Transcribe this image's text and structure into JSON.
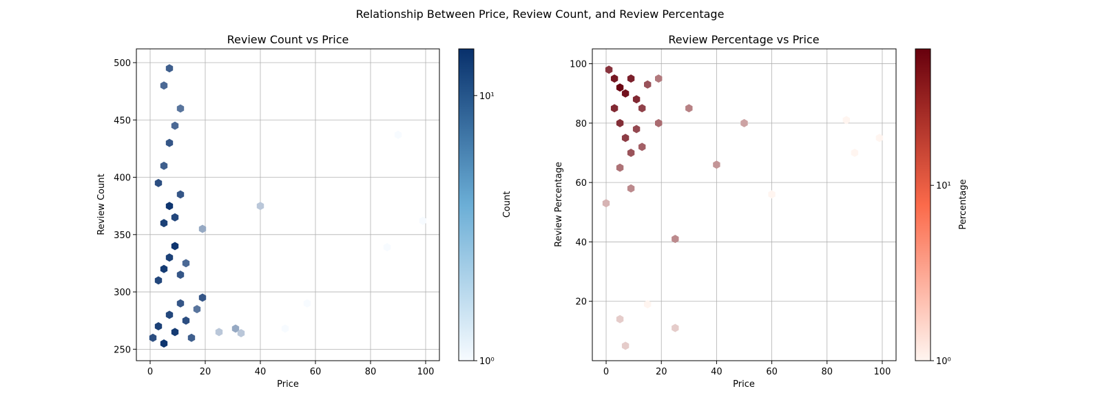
{
  "figure_title": "Relationship Between Price, Review Count, and Review Percentage",
  "chart_data": [
    {
      "type": "heatmap",
      "subtype": "hexbin",
      "title": "Review Count vs Price",
      "xlabel": "Price",
      "ylabel": "Review Count",
      "xlim": [
        -5,
        105
      ],
      "ylim": [
        240,
        512
      ],
      "xticks": [
        0,
        20,
        40,
        60,
        80,
        100
      ],
      "yticks": [
        250,
        300,
        350,
        400,
        450,
        500
      ],
      "grid": true,
      "colormap": "Blues",
      "color_low": "#f7fbff",
      "color_high": "#08306b",
      "colorbar": {
        "label": "Count",
        "scale": "log",
        "range": [
          1,
          15
        ],
        "ticks": [
          1,
          10
        ],
        "tick_labels": [
          "10⁰",
          "10¹"
        ]
      },
      "bins": [
        {
          "x": 1,
          "y": 260,
          "count": 10
        },
        {
          "x": 3,
          "y": 270,
          "count": 12
        },
        {
          "x": 5,
          "y": 255,
          "count": 14
        },
        {
          "x": 7,
          "y": 280,
          "count": 11
        },
        {
          "x": 9,
          "y": 265,
          "count": 13
        },
        {
          "x": 11,
          "y": 290,
          "count": 9
        },
        {
          "x": 13,
          "y": 275,
          "count": 10
        },
        {
          "x": 15,
          "y": 260,
          "count": 8
        },
        {
          "x": 17,
          "y": 285,
          "count": 6
        },
        {
          "x": 3,
          "y": 310,
          "count": 11
        },
        {
          "x": 5,
          "y": 320,
          "count": 13
        },
        {
          "x": 7,
          "y": 330,
          "count": 12
        },
        {
          "x": 9,
          "y": 340,
          "count": 14
        },
        {
          "x": 11,
          "y": 315,
          "count": 9
        },
        {
          "x": 13,
          "y": 325,
          "count": 7
        },
        {
          "x": 5,
          "y": 360,
          "count": 12
        },
        {
          "x": 7,
          "y": 375,
          "count": 14
        },
        {
          "x": 9,
          "y": 365,
          "count": 11
        },
        {
          "x": 11,
          "y": 385,
          "count": 9
        },
        {
          "x": 3,
          "y": 395,
          "count": 10
        },
        {
          "x": 5,
          "y": 410,
          "count": 8
        },
        {
          "x": 7,
          "y": 430,
          "count": 9
        },
        {
          "x": 9,
          "y": 445,
          "count": 7
        },
        {
          "x": 11,
          "y": 460,
          "count": 6
        },
        {
          "x": 5,
          "y": 480,
          "count": 7
        },
        {
          "x": 7,
          "y": 495,
          "count": 8
        },
        {
          "x": 19,
          "y": 295,
          "count": 9
        },
        {
          "x": 19,
          "y": 355,
          "count": 3
        },
        {
          "x": 25,
          "y": 265,
          "count": 2
        },
        {
          "x": 31,
          "y": 268,
          "count": 3
        },
        {
          "x": 33,
          "y": 264,
          "count": 2
        },
        {
          "x": 40,
          "y": 375,
          "count": 2
        },
        {
          "x": 49,
          "y": 268,
          "count": 1
        },
        {
          "x": 57,
          "y": 290,
          "count": 1
        },
        {
          "x": 86,
          "y": 339,
          "count": 1
        },
        {
          "x": 90,
          "y": 437,
          "count": 1
        },
        {
          "x": 99,
          "y": 362,
          "count": 1
        }
      ]
    },
    {
      "type": "heatmap",
      "subtype": "hexbin",
      "title": "Review Percentage vs Price",
      "xlabel": "Price",
      "ylabel": "Review Percentage",
      "xlim": [
        -5,
        105
      ],
      "ylim": [
        0,
        105
      ],
      "xticks": [
        0,
        20,
        40,
        60,
        80,
        100
      ],
      "yticks": [
        20,
        40,
        60,
        80,
        100
      ],
      "grid": true,
      "colormap": "Reds",
      "color_low": "#fff5f0",
      "color_high": "#67000d",
      "colorbar": {
        "label": "Percentage",
        "scale": "log",
        "range": [
          1,
          60
        ],
        "ticks": [
          1,
          10
        ],
        "tick_labels": [
          "10⁰",
          "10¹"
        ]
      },
      "bins": [
        {
          "x": 1,
          "y": 98,
          "count": 25
        },
        {
          "x": 3,
          "y": 95,
          "count": 40
        },
        {
          "x": 5,
          "y": 92,
          "count": 55
        },
        {
          "x": 7,
          "y": 90,
          "count": 45
        },
        {
          "x": 9,
          "y": 95,
          "count": 35
        },
        {
          "x": 11,
          "y": 88,
          "count": 30
        },
        {
          "x": 13,
          "y": 85,
          "count": 20
        },
        {
          "x": 15,
          "y": 93,
          "count": 15
        },
        {
          "x": 3,
          "y": 85,
          "count": 30
        },
        {
          "x": 5,
          "y": 80,
          "count": 28
        },
        {
          "x": 7,
          "y": 75,
          "count": 22
        },
        {
          "x": 9,
          "y": 70,
          "count": 15
        },
        {
          "x": 11,
          "y": 78,
          "count": 18
        },
        {
          "x": 13,
          "y": 72,
          "count": 12
        },
        {
          "x": 5,
          "y": 65,
          "count": 9
        },
        {
          "x": 9,
          "y": 58,
          "count": 6
        },
        {
          "x": 19,
          "y": 80,
          "count": 10
        },
        {
          "x": 19,
          "y": 95,
          "count": 8
        },
        {
          "x": 25,
          "y": 41,
          "count": 6
        },
        {
          "x": 30,
          "y": 85,
          "count": 7
        },
        {
          "x": 40,
          "y": 66,
          "count": 5
        },
        {
          "x": 50,
          "y": 80,
          "count": 4
        },
        {
          "x": 0,
          "y": 53,
          "count": 3
        },
        {
          "x": 5,
          "y": 14,
          "count": 2
        },
        {
          "x": 7,
          "y": 5,
          "count": 2
        },
        {
          "x": 15,
          "y": 19,
          "count": 1
        },
        {
          "x": 25,
          "y": 11,
          "count": 2
        },
        {
          "x": 87,
          "y": 81,
          "count": 1
        },
        {
          "x": 90,
          "y": 70,
          "count": 1
        },
        {
          "x": 99,
          "y": 75,
          "count": 1
        },
        {
          "x": 60,
          "y": 56,
          "count": 1
        }
      ]
    }
  ]
}
